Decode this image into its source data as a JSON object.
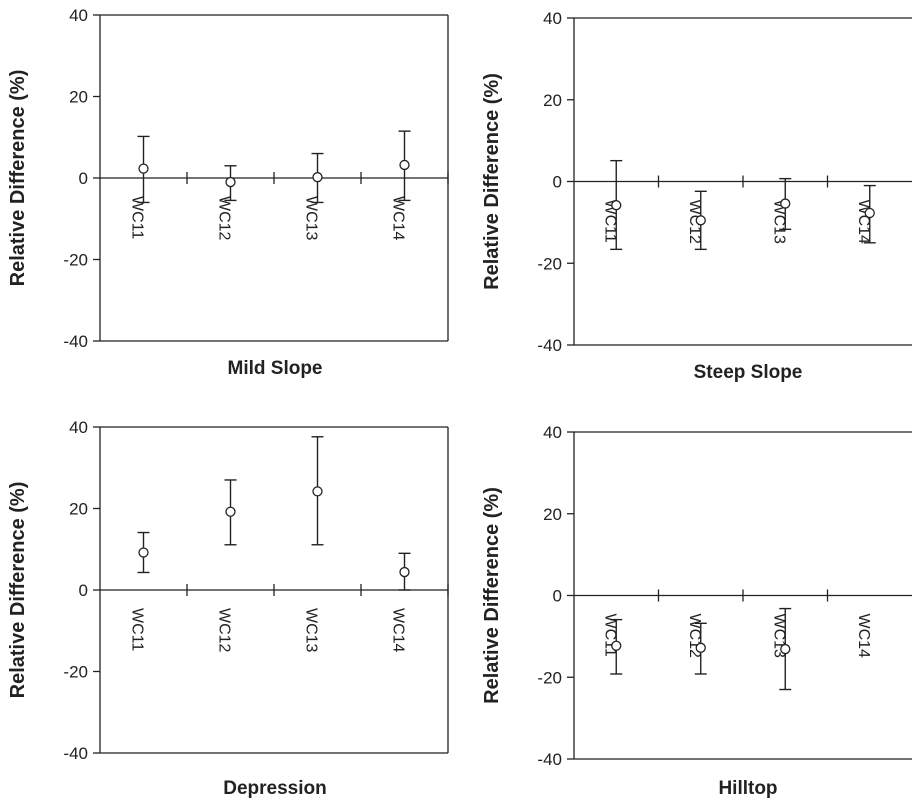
{
  "chart_data": [
    {
      "type": "scatter",
      "title": "Mild Slope",
      "xlabel": "Mild Slope",
      "ylabel": "Relative Difference (%)",
      "ylim": [
        -40,
        40
      ],
      "yticks": [
        40,
        20,
        0,
        -20,
        -40
      ],
      "categories": [
        "WC11",
        "WC12",
        "WC13",
        "WC14"
      ],
      "values": [
        2.3,
        -1.0,
        0.2,
        3.2
      ],
      "error_low": [
        -6.0,
        -5.5,
        -6.0,
        -5.5
      ],
      "error_high": [
        10.2,
        3.0,
        6.0,
        11.5
      ],
      "grid": false,
      "legend": "none"
    },
    {
      "type": "scatter",
      "title": "Steep Slope",
      "xlabel": "Steep Slope",
      "ylabel": "Relative Difference (%)",
      "ylim": [
        -40,
        40
      ],
      "yticks": [
        40,
        20,
        0,
        -20,
        -40
      ],
      "categories": [
        "WC11",
        "WC12",
        "WC13",
        "WC14"
      ],
      "values": [
        -5.8,
        -9.5,
        -5.4,
        -7.7
      ],
      "error_low": [
        -16.6,
        -16.6,
        -11.7,
        -15.0
      ],
      "error_high": [
        5.1,
        -2.4,
        0.7,
        -1.0
      ],
      "grid": false,
      "legend": "none"
    },
    {
      "type": "scatter",
      "title": "Depression",
      "xlabel": "Depression",
      "ylabel": "Relative Difference (%)",
      "ylim": [
        -40,
        40
      ],
      "yticks": [
        40,
        20,
        0,
        -20,
        -40
      ],
      "categories": [
        "WC11",
        "WC12",
        "WC13",
        "WC14"
      ],
      "values": [
        9.2,
        19.2,
        24.2,
        4.4
      ],
      "error_low": [
        4.3,
        11.1,
        11.1,
        0.0
      ],
      "error_high": [
        14.1,
        27.0,
        37.6,
        9.0
      ],
      "grid": false,
      "legend": "none"
    },
    {
      "type": "scatter",
      "title": "Hilltop",
      "xlabel": "Hilltop",
      "ylabel": "Relative Difference (%)",
      "ylim": [
        -40,
        40
      ],
      "yticks": [
        40,
        20,
        0,
        -20,
        -40
      ],
      "categories": [
        "WC11",
        "WC12",
        "WC13",
        "WC14"
      ],
      "values": [
        -12.3,
        -12.8,
        -13.1,
        null
      ],
      "error_low": [
        -19.2,
        -19.2,
        -23.0,
        null
      ],
      "error_high": [
        -5.9,
        -6.8,
        -3.2,
        null
      ],
      "grid": false,
      "legend": "none"
    }
  ]
}
